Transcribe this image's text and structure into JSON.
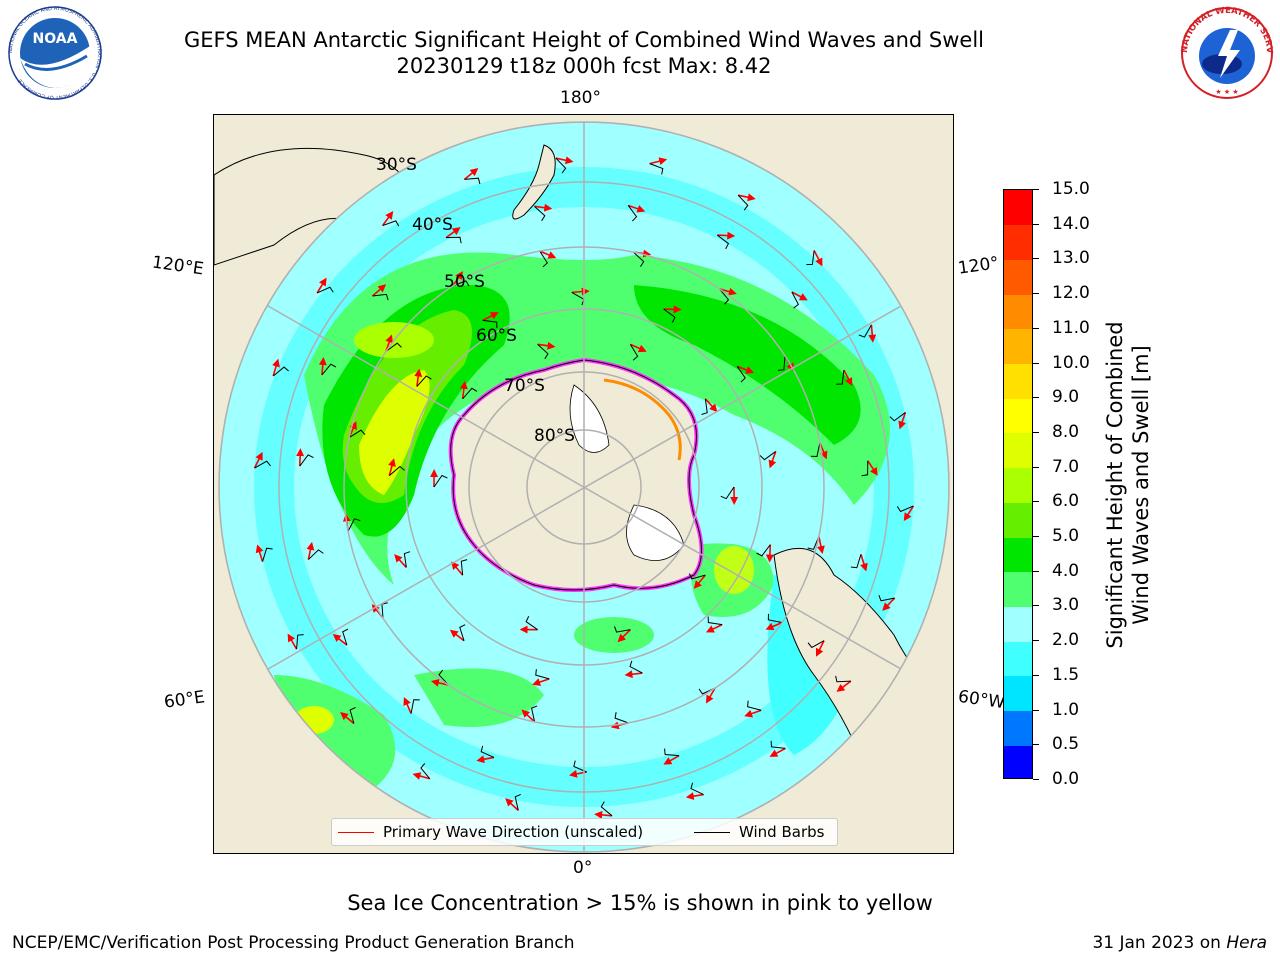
{
  "title": {
    "line1": "GEFS MEAN Antarctic Significant Height of Combined Wind Waves and Swell",
    "line2": "20230129 t18z 000h fcst   Max: 8.42"
  },
  "map": {
    "projection": "south-polar-stereographic",
    "lon_labels": [
      "180°",
      "120°E",
      "120°",
      "60°E",
      "60°W",
      "0°"
    ],
    "lat_labels": [
      "30°S",
      "40°S",
      "50°S",
      "60°S",
      "70°S",
      "80°S"
    ]
  },
  "colorbar": {
    "title_line1": "Significant Height of Combined",
    "title_line2": "Wind Waves and Swell [m]",
    "levels": [
      0.0,
      0.5,
      1.0,
      1.5,
      2.0,
      3.0,
      4.0,
      5.0,
      6.0,
      7.0,
      8.0,
      9.0,
      10.0,
      11.0,
      12.0,
      13.0,
      14.0,
      15.0
    ],
    "tick_labels": [
      "0.0",
      "0.5",
      "1.0",
      "1.5",
      "2.0",
      "3.0",
      "4.0",
      "5.0",
      "6.0",
      "7.0",
      "8.0",
      "9.0",
      "10.0",
      "11.0",
      "12.0",
      "13.0",
      "14.0",
      "15.0"
    ],
    "colors": [
      "#0000ff",
      "#0077ff",
      "#00e5ff",
      "#40ffff",
      "#a0ffff",
      "#50ff70",
      "#00e600",
      "#66ee00",
      "#aaff00",
      "#ddff00",
      "#ffff00",
      "#ffe000",
      "#ffb400",
      "#ff8c00",
      "#ff5a00",
      "#ff2d00",
      "#ff0000"
    ]
  },
  "legend": {
    "wave_label": "Primary Wave Direction (unscaled)",
    "wave_color": "#ff0000",
    "wind_label": "Wind Barbs",
    "wind_color": "#000000"
  },
  "note": "Sea Ice Concentration > 15% is shown in pink to yellow",
  "footer": {
    "left": "NCEP/EMC/Verification Post Processing Product Generation Branch",
    "right_date": "31 Jan 2023 on",
    "right_host": "Hera"
  },
  "logos": {
    "noaa_text": "NOAA",
    "noaa_ring": "NATIONAL OCEANIC AND ATMOSPHERIC ADMINISTRATION · U.S. DEPARTMENT OF COMMERCE",
    "nws_ring": "NATIONAL WEATHER SERVICE"
  },
  "colors": {
    "land": "#efebd7",
    "ocean_base": "#a0ffff",
    "grid": "#b0b0b0",
    "ice_edge": "#ff33ff"
  }
}
